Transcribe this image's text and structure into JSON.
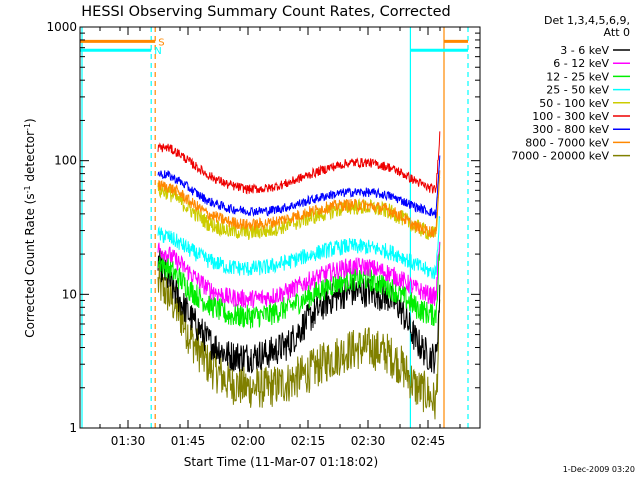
{
  "chart_data": {
    "type": "line",
    "title": "HESSI Observing Summary Count Rates, Corrected",
    "xlabel": "Start Time (11-Mar-07 01:18:02)",
    "ylabel": "Corrected Count Rate (s",
    "ylabel_sup": "-1",
    "ylabel_mid": " detector",
    "ylabel_end": ")",
    "y_scale": "log",
    "xlim_minutes": [
      78.0,
      178.0
    ],
    "ylim": [
      1,
      1000
    ],
    "x_ticks": [
      {
        "value": 90,
        "label": "01:30"
      },
      {
        "value": 105,
        "label": "01:45"
      },
      {
        "value": 120,
        "label": "02:00"
      },
      {
        "value": 135,
        "label": "02:15"
      },
      {
        "value": 150,
        "label": "02:30"
      },
      {
        "value": 165,
        "label": "02:45"
      }
    ],
    "y_ticks": [
      {
        "value": 1,
        "label": "1"
      },
      {
        "value": 10,
        "label": "10"
      },
      {
        "value": 100,
        "label": "100"
      },
      {
        "value": 1000,
        "label": "1000"
      }
    ],
    "legend": {
      "placement": "right",
      "title_lines": [
        "Det 1,3,4,5,6,9,",
        "Att 0"
      ],
      "entries": [
        {
          "label": "3 - 6 keV",
          "color": "#000000"
        },
        {
          "label": "6 - 12 keV",
          "color": "#ff00ff"
        },
        {
          "label": "12 - 25 keV",
          "color": "#00ee00"
        },
        {
          "label": "25 - 50 keV",
          "color": "#00ffff"
        },
        {
          "label": "50 - 100 keV",
          "color": "#cccc00"
        },
        {
          "label": "100 - 300 keV",
          "color": "#ee0000"
        },
        {
          "label": "300 - 800 keV",
          "color": "#0000ff"
        },
        {
          "label": "800 - 7000 keV",
          "color": "#ff8800"
        },
        {
          "label": "7000 - 20000 keV",
          "color": "#808000"
        }
      ]
    },
    "flags": [
      {
        "label": "S",
        "color": "#ff8800",
        "level": 780,
        "segments": [
          [
            78.0,
            96.8
          ],
          [
            169.0,
            175.0
          ]
        ]
      },
      {
        "label": "N",
        "color": "#00ffff",
        "level": 670,
        "segments": [
          [
            78.0,
            95.8
          ],
          [
            160.6,
            175.0
          ]
        ]
      }
    ],
    "vertical_markers": [
      {
        "time": 78.5,
        "color": "#00ffff",
        "style": "solid"
      },
      {
        "time": 95.8,
        "color": "#00ffff",
        "style": "dashed"
      },
      {
        "time": 96.8,
        "color": "#ff8800",
        "style": "dashed"
      },
      {
        "time": 160.6,
        "color": "#00ffff",
        "style": "solid"
      },
      {
        "time": 169.0,
        "color": "#ff8800",
        "style": "solid"
      },
      {
        "time": 175.0,
        "color": "#00ffff",
        "style": "dashed"
      }
    ],
    "series": [
      {
        "name": "3 - 6 keV",
        "color": "#000000",
        "x": [
          97.5,
          100,
          103,
          106,
          110,
          115,
          120,
          125,
          130,
          135,
          140,
          145,
          150,
          155,
          158,
          160,
          162,
          165,
          167,
          168
        ],
        "values": [
          18,
          13,
          9,
          6.5,
          4.5,
          3.5,
          3.4,
          3.6,
          4.2,
          6.5,
          9,
          10.5,
          10.5,
          9.5,
          8,
          6,
          4.5,
          3.5,
          3.3,
          10
        ]
      },
      {
        "name": "6 - 12 keV",
        "color": "#ff00ff",
        "x": [
          97.5,
          100,
          103,
          106,
          110,
          115,
          120,
          125,
          130,
          135,
          140,
          145,
          150,
          155,
          158,
          160,
          162,
          165,
          167,
          168
        ],
        "values": [
          22,
          20,
          17,
          14,
          11,
          9.5,
          9.2,
          9.5,
          10.5,
          12.5,
          14.5,
          16,
          16,
          14.5,
          13,
          12,
          11,
          10,
          9.5,
          30
        ]
      },
      {
        "name": "12 - 25 keV",
        "color": "#00ee00",
        "x": [
          97.5,
          100,
          103,
          106,
          110,
          115,
          120,
          125,
          130,
          135,
          140,
          145,
          150,
          155,
          158,
          160,
          162,
          165,
          167,
          168
        ],
        "values": [
          18,
          16,
          13,
          10.5,
          8.5,
          7,
          6.8,
          7,
          8,
          9.5,
          11.5,
          13,
          13,
          11.5,
          10,
          9,
          8,
          7.2,
          7,
          25
        ]
      },
      {
        "name": "25 - 50 keV",
        "color": "#00ffff",
        "x": [
          97.5,
          100,
          103,
          106,
          110,
          115,
          120,
          125,
          130,
          135,
          140,
          145,
          150,
          155,
          158,
          160,
          162,
          165,
          167,
          168
        ],
        "values": [
          28,
          27,
          24,
          21,
          18,
          16,
          15.5,
          16,
          17.5,
          19.5,
          21.5,
          23,
          22.5,
          21,
          19.5,
          18,
          16.5,
          15,
          14.5,
          45
        ]
      },
      {
        "name": "50 - 100 keV",
        "color": "#cccc00",
        "x": [
          97.5,
          100,
          103,
          106,
          110,
          115,
          120,
          125,
          130,
          135,
          140,
          145,
          150,
          155,
          158,
          160,
          162,
          165,
          167,
          168
        ],
        "values": [
          60,
          58,
          50,
          42,
          34,
          30,
          29,
          30,
          33,
          37,
          41,
          45,
          45,
          42,
          38,
          35,
          32,
          29,
          28,
          90
        ]
      },
      {
        "name": "100 - 300 keV",
        "color": "#ee0000",
        "x": [
          97.5,
          100,
          103,
          106,
          110,
          115,
          120,
          125,
          130,
          135,
          140,
          145,
          150,
          155,
          158,
          160,
          162,
          165,
          167,
          168
        ],
        "values": [
          125,
          125,
          112,
          95,
          78,
          66,
          61,
          62,
          68,
          78,
          88,
          96,
          97,
          90,
          82,
          76,
          70,
          63,
          60,
          170
        ]
      },
      {
        "name": "300 - 800 keV",
        "color": "#0000ff",
        "x": [
          97.5,
          100,
          103,
          106,
          110,
          115,
          120,
          125,
          130,
          135,
          140,
          145,
          150,
          155,
          158,
          160,
          162,
          165,
          167,
          168
        ],
        "values": [
          80,
          78,
          70,
          60,
          50,
          44,
          42,
          42,
          45,
          50,
          55,
          58,
          58,
          55,
          51,
          48,
          45,
          42,
          40,
          110
        ]
      },
      {
        "name": "800 - 7000 keV",
        "color": "#ff8800",
        "x": [
          97.5,
          100,
          103,
          106,
          110,
          115,
          120,
          125,
          130,
          135,
          140,
          145,
          150,
          155,
          158,
          160,
          162,
          165,
          167,
          168
        ],
        "values": [
          65,
          64,
          57,
          48,
          40,
          35,
          33,
          34,
          37,
          41,
          45,
          47,
          46,
          43,
          39,
          35,
          32,
          30,
          29,
          90
        ]
      },
      {
        "name": "7000 - 20000 keV",
        "color": "#808000",
        "x": [
          97.5,
          100,
          103,
          106,
          110,
          115,
          120,
          125,
          130,
          135,
          140,
          145,
          150,
          155,
          158,
          160,
          162,
          165,
          167,
          168
        ],
        "values": [
          12,
          10,
          7,
          4.5,
          3,
          2.2,
          2,
          2,
          2.2,
          2.6,
          3.2,
          3.8,
          4,
          3.6,
          3,
          2.5,
          2,
          1.8,
          1.5,
          8
        ]
      }
    ],
    "grid": false
  },
  "footer": {
    "timestamp": "1-Dec-2009 03:20"
  }
}
